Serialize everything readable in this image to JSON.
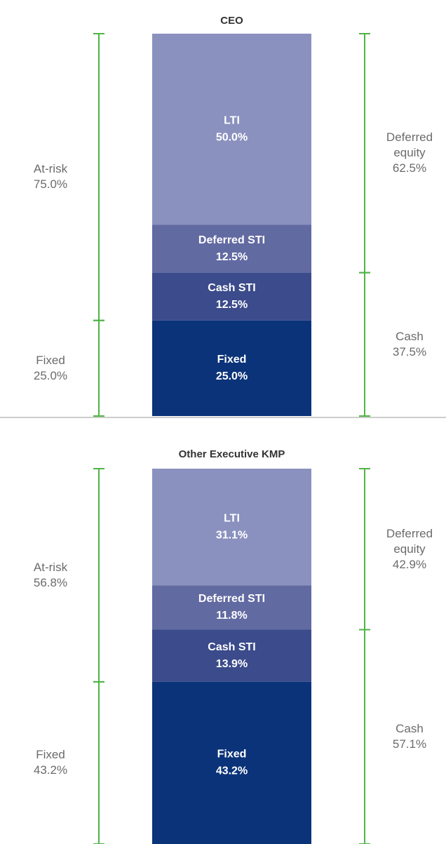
{
  "chart_data": [
    {
      "type": "stacked_bar",
      "title": "CEO",
      "categories": [
        "LTI",
        "Deferred STI",
        "Cash STI",
        "Fixed"
      ],
      "values": [
        50.0,
        12.5,
        12.5,
        25.0
      ],
      "value_labels": [
        "50.0%",
        "12.5%",
        "12.5%",
        "25.0%"
      ],
      "colors": [
        "#8a91bf",
        "#626aa2",
        "#3b4b8b",
        "#0b3379"
      ],
      "left_groups": {
        "names": [
          "At-risk",
          "Fixed"
        ],
        "values": [
          75.0,
          25.0
        ],
        "value_labels": [
          "75.0%",
          "25.0%"
        ]
      },
      "right_groups": {
        "names": [
          "Deferred equity",
          "Cash"
        ],
        "values": [
          62.5,
          37.5
        ],
        "value_labels": [
          "62.5%",
          "37.5%"
        ]
      },
      "bracket_color": "#4fb447"
    },
    {
      "type": "stacked_bar",
      "title": "Other Executive KMP",
      "categories": [
        "LTI",
        "Deferred STI",
        "Cash STI",
        "Fixed"
      ],
      "values": [
        31.1,
        11.8,
        13.9,
        43.2
      ],
      "value_labels": [
        "31.1%",
        "11.8%",
        "13.9%",
        "43.2%"
      ],
      "colors": [
        "#8a91bf",
        "#626aa2",
        "#3b4b8b",
        "#0b3379"
      ],
      "left_groups": {
        "names": [
          "At-risk",
          "Fixed"
        ],
        "values": [
          56.8,
          43.2
        ],
        "value_labels": [
          "56.8%",
          "43.2%"
        ]
      },
      "right_groups": {
        "names": [
          "Deferred equity",
          "Cash"
        ],
        "values": [
          42.9,
          57.1
        ],
        "value_labels": [
          "42.9%",
          "57.1%"
        ]
      },
      "bracket_color": "#4fb447"
    }
  ]
}
